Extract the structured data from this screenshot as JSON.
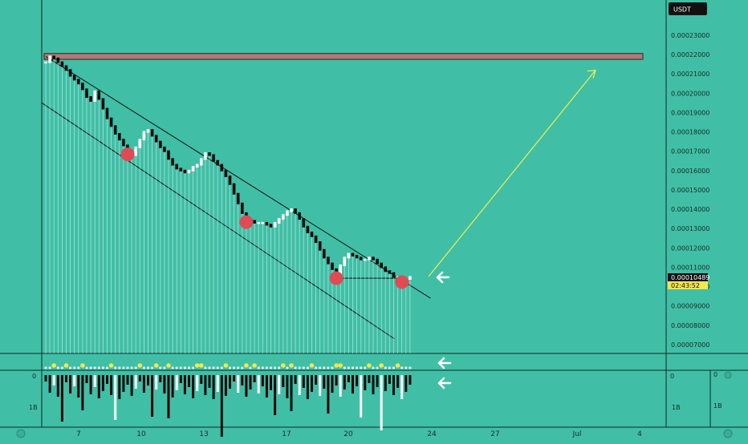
{
  "currency": "USDT",
  "last_price": "0.00010489",
  "countdown": "02:43:52",
  "colors": {
    "background": "#40bfa6",
    "resistance_band": "#b07a7a",
    "arrow": "#f2ef4a",
    "candle": "#0a0a0a",
    "dot": "#e04a55",
    "highlight": "#f5e64a"
  },
  "chart_data": {
    "type": "candlestick",
    "y_scale": "linear",
    "ylim": [
      6.5e-05,
      0.000245
    ],
    "y_ticks": [
      "0.00007000",
      "0.00008000",
      "0.00009000",
      "0.00010000",
      "0.00011000",
      "0.00012000",
      "0.00013000",
      "0.00014000",
      "0.00015000",
      "0.00016000",
      "0.00017000",
      "0.00018000",
      "0.00019000",
      "0.00020000",
      "0.00021000",
      "0.00022000",
      "0.00023000"
    ],
    "x_ticks": [
      "7",
      "10",
      "13",
      "17",
      "20",
      "24",
      "27",
      "Jul",
      "4"
    ],
    "close_series": [
      0.000216,
      0.000219,
      0.000218,
      0.000216,
      0.000214,
      0.000212,
      0.000209,
      0.000207,
      0.000205,
      0.000202,
      0.000198,
      0.000196,
      0.000201,
      0.000197,
      0.000192,
      0.000187,
      0.000183,
      0.000179,
      0.000176,
      0.000173,
      0.00017,
      0.000168,
      0.000172,
      0.000176,
      0.00018,
      0.000181,
      0.000178,
      0.000175,
      0.000172,
      0.00017,
      0.000166,
      0.000163,
      0.000161,
      0.00016,
      0.000159,
      0.00016,
      0.000162,
      0.000163,
      0.000166,
      0.000169,
      0.000168,
      0.000165,
      0.000163,
      0.00016,
      0.000157,
      0.000153,
      0.000148,
      0.000143,
      0.000138,
      0.000135,
      0.000134,
      0.000133,
      0.000133,
      0.000133,
      0.000132,
      0.000131,
      0.000133,
      0.000135,
      0.000137,
      0.000139,
      0.00014,
      0.000138,
      0.000135,
      0.000131,
      0.000128,
      0.000126,
      0.000123,
      0.000119,
      0.000115,
      0.000112,
      0.000109,
      0.000106,
      0.000111,
      0.000115,
      0.000117,
      0.000116,
      0.000115,
      0.000114,
      0.000114,
      0.000115,
      0.000114,
      0.000112,
      0.00011,
      0.000108,
      0.000107,
      0.000105,
      0.000105,
      0.000104,
      0.000104,
      0.000105
    ],
    "resistance_band": [
      0.0002175,
      0.0002205
    ],
    "channel": {
      "upper": [
        [
          0.000219,
          0
        ],
        [
          9.4e-05,
          94
        ]
      ],
      "lower": [
        [
          0.000195,
          0
        ],
        [
          7.3e-05,
          94
        ]
      ]
    },
    "projection_target": 0.000216,
    "touch_points_idx": [
      20,
      49,
      71,
      87
    ],
    "volume_axis": [
      "0",
      "1B"
    ]
  }
}
